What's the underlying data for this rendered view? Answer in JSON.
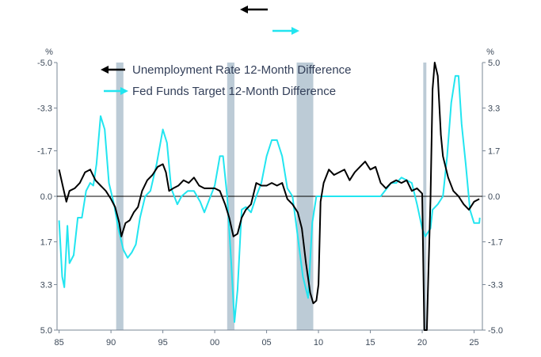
{
  "chart_data": {
    "type": "line",
    "title": "",
    "xlabel": "",
    "left_axis": {
      "unit": "%",
      "inverted": true,
      "ylim": [
        -5.0,
        5.0
      ],
      "tick_labels": [
        "-5.0",
        "-3.3",
        "-1.7",
        "0.0",
        "1.7",
        "3.3",
        "5.0"
      ]
    },
    "right_axis": {
      "unit": "%",
      "inverted": false,
      "ylim": [
        -5.0,
        5.0
      ],
      "tick_labels": [
        "5.0",
        "3.3",
        "1.7",
        "0.0",
        "-1.7",
        "-3.3",
        "-5.0"
      ]
    },
    "x_axis": {
      "range": [
        1984.8,
        2025.8
      ],
      "tick_labels": [
        "85",
        "90",
        "95",
        "00",
        "05",
        "10",
        "15",
        "20",
        "25"
      ],
      "tick_years": [
        1985,
        1990,
        1995,
        2000,
        2005,
        2010,
        2015,
        2020,
        2025
      ]
    },
    "recessions": [
      [
        1990.5,
        1991.2
      ],
      [
        2001.2,
        2001.9
      ],
      [
        2007.9,
        2009.5
      ],
      [
        2020.1,
        2020.4
      ]
    ],
    "arrows": {
      "left_label_arrow_color": "#000000",
      "right_label_arrow_color": "#22e5f0"
    },
    "series": [
      {
        "name": "Unemployment Rate 12-Month Difference",
        "axis": "left",
        "color": "#000000",
        "points": [
          [
            1985.0,
            -1.0
          ],
          [
            1985.4,
            -0.3
          ],
          [
            1985.7,
            0.2
          ],
          [
            1986.0,
            -0.2
          ],
          [
            1986.5,
            -0.3
          ],
          [
            1987.0,
            -0.5
          ],
          [
            1987.5,
            -0.9
          ],
          [
            1988.0,
            -1.0
          ],
          [
            1988.5,
            -0.6
          ],
          [
            1989.0,
            -0.4
          ],
          [
            1989.5,
            -0.2
          ],
          [
            1990.0,
            0.1
          ],
          [
            1990.4,
            0.4
          ],
          [
            1990.8,
            1.0
          ],
          [
            1991.0,
            1.5
          ],
          [
            1991.4,
            1.0
          ],
          [
            1991.8,
            0.9
          ],
          [
            1992.2,
            0.6
          ],
          [
            1992.6,
            0.4
          ],
          [
            1993.0,
            -0.2
          ],
          [
            1993.5,
            -0.6
          ],
          [
            1994.0,
            -0.8
          ],
          [
            1994.5,
            -1.1
          ],
          [
            1995.0,
            -1.2
          ],
          [
            1995.3,
            -0.9
          ],
          [
            1995.6,
            -0.2
          ],
          [
            1996.0,
            -0.3
          ],
          [
            1996.5,
            -0.4
          ],
          [
            1997.0,
            -0.6
          ],
          [
            1997.5,
            -0.5
          ],
          [
            1998.0,
            -0.7
          ],
          [
            1998.5,
            -0.4
          ],
          [
            1999.0,
            -0.3
          ],
          [
            1999.5,
            -0.3
          ],
          [
            2000.0,
            -0.3
          ],
          [
            2000.5,
            -0.2
          ],
          [
            2001.0,
            0.3
          ],
          [
            2001.4,
            0.8
          ],
          [
            2001.8,
            1.5
          ],
          [
            2002.2,
            1.4
          ],
          [
            2002.6,
            0.8
          ],
          [
            2003.0,
            0.5
          ],
          [
            2003.5,
            0.3
          ],
          [
            2004.0,
            -0.5
          ],
          [
            2004.5,
            -0.4
          ],
          [
            2005.0,
            -0.4
          ],
          [
            2005.5,
            -0.5
          ],
          [
            2006.0,
            -0.4
          ],
          [
            2006.5,
            -0.5
          ],
          [
            2007.0,
            0.1
          ],
          [
            2007.5,
            0.3
          ],
          [
            2008.0,
            0.6
          ],
          [
            2008.4,
            1.2
          ],
          [
            2008.8,
            2.5
          ],
          [
            2009.2,
            3.6
          ],
          [
            2009.5,
            4.0
          ],
          [
            2009.8,
            3.9
          ],
          [
            2010.0,
            3.3
          ],
          [
            2010.2,
            0.2
          ],
          [
            2010.5,
            -0.5
          ],
          [
            2011.0,
            -1.0
          ],
          [
            2011.5,
            -0.8
          ],
          [
            2012.0,
            -0.9
          ],
          [
            2012.5,
            -1.0
          ],
          [
            2013.0,
            -0.6
          ],
          [
            2013.5,
            -0.9
          ],
          [
            2014.0,
            -1.1
          ],
          [
            2014.5,
            -1.3
          ],
          [
            2015.0,
            -1.0
          ],
          [
            2015.5,
            -1.1
          ],
          [
            2016.0,
            -0.5
          ],
          [
            2016.5,
            -0.3
          ],
          [
            2017.0,
            -0.5
          ],
          [
            2017.5,
            -0.6
          ],
          [
            2018.0,
            -0.5
          ],
          [
            2018.5,
            -0.6
          ],
          [
            2019.0,
            -0.2
          ],
          [
            2019.5,
            -0.3
          ],
          [
            2020.0,
            -0.1
          ],
          [
            2020.2,
            5.0
          ],
          [
            2020.45,
            5.0
          ],
          [
            2020.6,
            2.8
          ],
          [
            2020.8,
            0.1
          ],
          [
            2021.0,
            -4.0
          ],
          [
            2021.2,
            -5.0
          ],
          [
            2021.5,
            -4.5
          ],
          [
            2021.8,
            -2.3
          ],
          [
            2022.0,
            -1.5
          ],
          [
            2022.5,
            -0.7
          ],
          [
            2023.0,
            -0.2
          ],
          [
            2023.5,
            0.0
          ],
          [
            2024.0,
            0.3
          ],
          [
            2024.5,
            0.5
          ],
          [
            2025.0,
            0.2
          ],
          [
            2025.5,
            0.1
          ]
        ]
      },
      {
        "name": "Fed Funds Target 12-Month Difference",
        "axis": "right",
        "color": "#22e5f0",
        "points": [
          [
            1985.0,
            -0.9
          ],
          [
            1985.3,
            -3.0
          ],
          [
            1985.5,
            -3.4
          ],
          [
            1985.8,
            -1.1
          ],
          [
            1986.0,
            -2.5
          ],
          [
            1986.4,
            -2.2
          ],
          [
            1986.8,
            -0.8
          ],
          [
            1987.2,
            -0.8
          ],
          [
            1987.6,
            0.2
          ],
          [
            1988.0,
            0.5
          ],
          [
            1988.3,
            0.4
          ],
          [
            1988.6,
            1.2
          ],
          [
            1989.0,
            3.0
          ],
          [
            1989.4,
            2.5
          ],
          [
            1989.8,
            0.5
          ],
          [
            1990.3,
            -0.3
          ],
          [
            1990.7,
            -1.2
          ],
          [
            1991.2,
            -2.0
          ],
          [
            1991.6,
            -2.3
          ],
          [
            1992.0,
            -2.1
          ],
          [
            1992.4,
            -1.8
          ],
          [
            1992.8,
            -0.8
          ],
          [
            1993.3,
            0.0
          ],
          [
            1993.8,
            0.2
          ],
          [
            1994.4,
            1.2
          ],
          [
            1995.0,
            2.5
          ],
          [
            1995.4,
            2.0
          ],
          [
            1995.8,
            0.3
          ],
          [
            1996.4,
            -0.3
          ],
          [
            1996.8,
            0.0
          ],
          [
            1997.4,
            0.2
          ],
          [
            1998.0,
            0.2
          ],
          [
            1998.6,
            -0.2
          ],
          [
            1999.0,
            -0.6
          ],
          [
            1999.6,
            0.0
          ],
          [
            2000.0,
            0.4
          ],
          [
            2000.5,
            1.5
          ],
          [
            2000.8,
            1.5
          ],
          [
            2001.2,
            0.0
          ],
          [
            2001.6,
            -2.5
          ],
          [
            2001.9,
            -4.7
          ],
          [
            2002.2,
            -3.5
          ],
          [
            2002.6,
            -0.5
          ],
          [
            2003.0,
            -0.4
          ],
          [
            2003.5,
            -0.6
          ],
          [
            2004.0,
            0.0
          ],
          [
            2004.5,
            0.5
          ],
          [
            2005.0,
            1.5
          ],
          [
            2005.5,
            2.1
          ],
          [
            2006.0,
            2.1
          ],
          [
            2006.5,
            1.5
          ],
          [
            2007.0,
            0.3
          ],
          [
            2007.5,
            0.0
          ],
          [
            2008.0,
            -1.5
          ],
          [
            2008.5,
            -3.0
          ],
          [
            2009.0,
            -3.8
          ],
          [
            2009.4,
            -1.0
          ],
          [
            2009.8,
            0.0
          ],
          [
            2012.0,
            0.0
          ],
          [
            2016.0,
            0.0
          ],
          [
            2016.5,
            0.25
          ],
          [
            2017.0,
            0.5
          ],
          [
            2017.5,
            0.5
          ],
          [
            2018.0,
            0.7
          ],
          [
            2018.5,
            0.6
          ],
          [
            2019.0,
            0.5
          ],
          [
            2019.5,
            -0.3
          ],
          [
            2020.0,
            -1.2
          ],
          [
            2020.3,
            -1.5
          ],
          [
            2020.8,
            -1.2
          ],
          [
            2021.0,
            -0.5
          ],
          [
            2021.5,
            -0.3
          ],
          [
            2022.0,
            0.0
          ],
          [
            2022.4,
            1.5
          ],
          [
            2022.8,
            3.5
          ],
          [
            2023.2,
            4.5
          ],
          [
            2023.5,
            4.5
          ],
          [
            2023.8,
            2.7
          ],
          [
            2024.2,
            1.2
          ],
          [
            2024.6,
            -0.5
          ],
          [
            2025.0,
            -1.0
          ],
          [
            2025.5,
            -1.0
          ],
          [
            2025.55,
            -0.8
          ]
        ]
      }
    ]
  }
}
